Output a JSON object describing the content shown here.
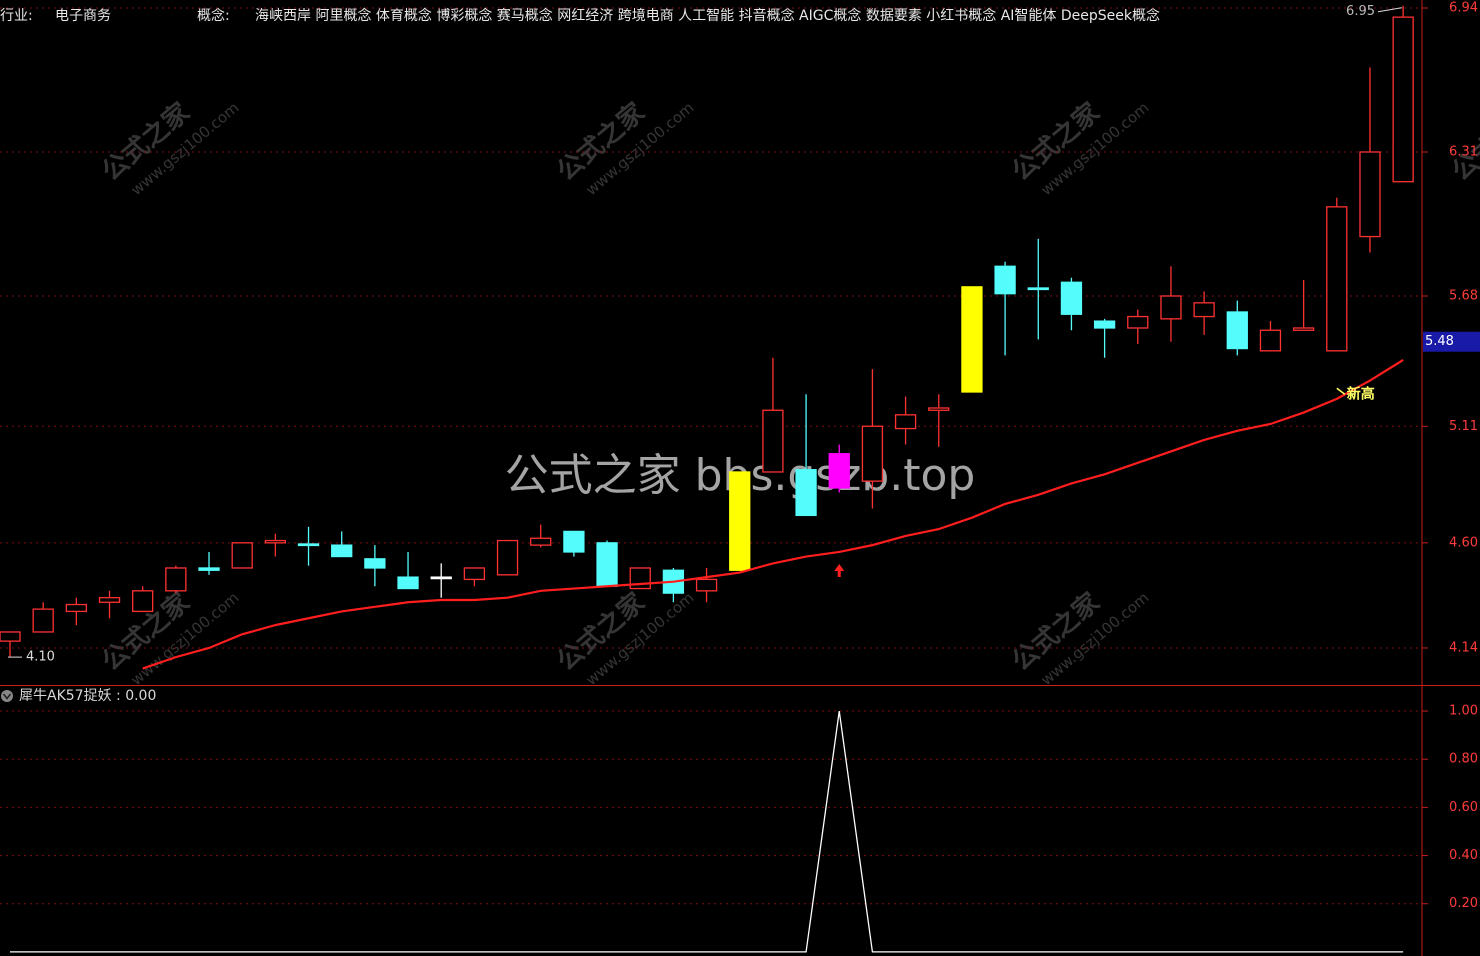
{
  "header": {
    "industry_label": "行业:",
    "industry": "电子商务",
    "concept_label": "概念:",
    "concepts": "海峡西岸 阿里概念 体育概念 博彩概念 赛马概念 网红经济 跨境电商 人工智能 抖音概念 AIGC概念 数据要素 小红书概念 AI智能体 DeepSeek概念"
  },
  "watermarks": {
    "brand": "公式之家",
    "site": "www.gszj100.com",
    "center": "公式之家 bbs.gszb.top"
  },
  "chart_data": [
    {
      "type": "candlestick",
      "open": [
        4.17,
        4.21,
        4.3,
        4.34,
        4.3,
        4.39,
        4.49,
        4.49,
        4.6,
        4.595,
        4.59,
        4.53,
        4.45,
        4.45,
        4.44,
        4.46,
        4.59,
        4.65,
        4.6,
        4.4,
        4.48,
        4.39,
        4.48,
        4.91,
        4.92,
        4.99,
        4.87,
        5.1,
        5.18,
        5.26,
        5.81,
        5.715,
        5.74,
        5.57,
        5.54,
        5.58,
        5.59,
        5.61,
        5.44,
        5.53,
        5.44,
        5.94,
        6.18
      ],
      "high": [
        4.21,
        4.34,
        4.36,
        4.39,
        4.41,
        4.5,
        4.56,
        4.6,
        4.64,
        4.67,
        4.65,
        4.59,
        4.56,
        4.51,
        4.49,
        4.61,
        4.68,
        4.65,
        4.61,
        4.49,
        4.49,
        4.49,
        4.91,
        5.41,
        5.25,
        5.03,
        5.36,
        5.24,
        5.25,
        5.72,
        5.83,
        5.93,
        5.76,
        5.58,
        5.62,
        5.81,
        5.7,
        5.66,
        5.57,
        5.75,
        6.11,
        6.68,
        6.95
      ],
      "low": [
        4.1,
        4.21,
        4.24,
        4.27,
        4.3,
        4.38,
        4.46,
        4.49,
        4.54,
        4.5,
        4.54,
        4.41,
        4.4,
        4.36,
        4.41,
        4.46,
        4.58,
        4.54,
        4.41,
        4.4,
        4.34,
        4.34,
        4.48,
        4.91,
        4.72,
        4.82,
        4.75,
        5.03,
        5.02,
        5.26,
        5.42,
        5.49,
        5.53,
        5.41,
        5.47,
        5.48,
        5.51,
        5.42,
        5.44,
        5.53,
        5.44,
        5.87,
        6.18
      ],
      "close": [
        4.21,
        4.31,
        4.33,
        4.36,
        4.39,
        4.49,
        4.48,
        4.6,
        4.61,
        4.59,
        4.54,
        4.49,
        4.4,
        4.45,
        4.49,
        4.61,
        4.62,
        4.56,
        4.41,
        4.49,
        4.38,
        4.44,
        4.91,
        5.18,
        4.72,
        4.84,
        5.11,
        5.16,
        5.19,
        5.72,
        5.69,
        5.71,
        5.6,
        5.54,
        5.59,
        5.68,
        5.65,
        5.45,
        5.53,
        5.54,
        6.07,
        6.31,
        6.9
      ],
      "colors": [
        "#ff3232",
        "#ff3232",
        "#ff3232",
        "#ff3232",
        "#ff3232",
        "#ff3232",
        "#54fcfc",
        "#ff3232",
        "#ff3232",
        "#54fcfc",
        "#54fcfc",
        "#54fcfc",
        "#54fcfc",
        "#ffffff",
        "#ff3232",
        "#ff3232",
        "#ff3232",
        "#54fcfc",
        "#54fcfc",
        "#ff3232",
        "#54fcfc",
        "#ff3232",
        "#ffff00",
        "#ff3232",
        "#54fcfc",
        "#ff00ff",
        "#ff3232",
        "#ff3232",
        "#ff3232",
        "#ffff00",
        "#54fcfc",
        "#54fcfc",
        "#54fcfc",
        "#54fcfc",
        "#ff3232",
        "#ff3232",
        "#ff3232",
        "#54fcfc",
        "#ff3232",
        "#ff3232",
        "#ff3232",
        "#ff3232",
        "#ff3232"
      ],
      "hollow_color": "#ff3232",
      "ma": {
        "color": "#ff1e1e",
        "values": [
          null,
          null,
          null,
          null,
          4.05,
          4.1,
          4.14,
          4.2,
          4.24,
          4.27,
          4.3,
          4.32,
          4.34,
          4.35,
          4.35,
          4.36,
          4.39,
          4.4,
          4.41,
          4.42,
          4.43,
          4.45,
          4.47,
          4.51,
          4.54,
          4.56,
          4.59,
          4.63,
          4.66,
          4.71,
          4.77,
          4.81,
          4.86,
          4.9,
          4.95,
          5.0,
          5.05,
          5.09,
          5.12,
          5.17,
          5.23,
          5.31,
          5.4
        ]
      },
      "min_marker": {
        "value": 4.1,
        "label": "4.10"
      },
      "max_marker": {
        "value": 6.95,
        "label": "6.95"
      },
      "cursor_label": {
        "value": 5.48,
        "label": "5.48"
      },
      "annotation": {
        "text": "新高",
        "value": 5.25
      },
      "ylim": [
        3.978,
        6.975
      ],
      "yticks": [
        6.94,
        6.31,
        5.68,
        5.11,
        {
          "value": 4.6,
          "label": "4.60"
        },
        4.14
      ],
      "grid": true
    },
    {
      "type": "line",
      "title": "犀牛AK57捉妖 : 0.00",
      "color": "#ffffff",
      "values": [
        0,
        0,
        0,
        0,
        0,
        0,
        0,
        0,
        0,
        0,
        0,
        0,
        0,
        0,
        0,
        0,
        0,
        0,
        0,
        0,
        0,
        0,
        0,
        0,
        0,
        1,
        0,
        0,
        0,
        0,
        0,
        0,
        0,
        0,
        0,
        0,
        0,
        0,
        0,
        0,
        0,
        0,
        0
      ],
      "ylim": [
        -0.017,
        1.104
      ],
      "yticks": [
        {
          "value": 1,
          "label": "1.00"
        },
        {
          "value": 0.8,
          "label": "0.80"
        },
        {
          "value": 0.6,
          "label": "0.60"
        },
        {
          "value": 0.4,
          "label": "0.40"
        },
        {
          "value": 0.2,
          "label": "0.20"
        }
      ],
      "grid": true
    }
  ]
}
